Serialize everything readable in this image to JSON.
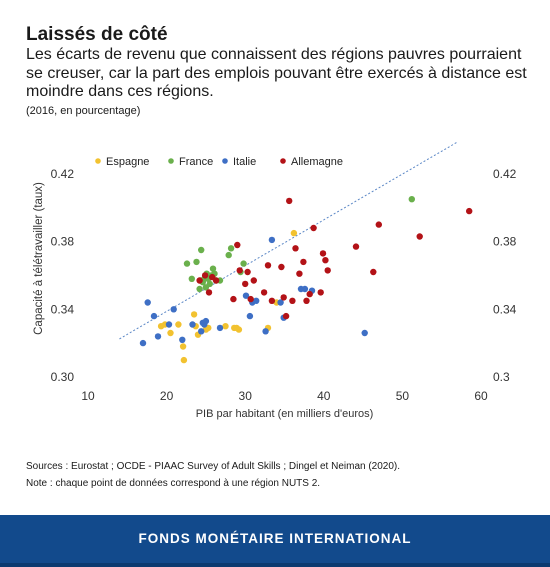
{
  "header": {
    "title": "Laissés de côté",
    "subtitle": "Les écarts de revenu que connaissent des régions pauvres pourraient se creuser, car la part des emplois pouvant être exercés à distance est moindre dans ces régions.",
    "unit": "(2016, en pourcentage)"
  },
  "notes": {
    "sources": "Sources : Eurostat ; OCDE - PIAAC Survey of Adult Skills ; Dingel et Neiman (2020).",
    "note": "Note : chaque point de données correspond à une région NUTS 2."
  },
  "footer": {
    "label": "FONDS MONÉTAIRE INTERNATIONAL"
  },
  "chart_data": {
    "type": "scatter",
    "xlabel": "PIB par habitant (en milliers d'euros)",
    "ylabel": "Capacité à télétravailler (taux)",
    "xlim": [
      10,
      60
    ],
    "ylim": [
      0.3,
      0.44
    ],
    "xticks": [
      10,
      20,
      30,
      40,
      50,
      60
    ],
    "yticks": [
      0.3,
      0.34,
      0.38,
      0.42
    ],
    "ytick_labels_left": [
      "0.30",
      "0.34",
      "0.38",
      "0.42"
    ],
    "ytick_labels_right": [
      "0.3",
      "0.34",
      "0.38",
      "0.42"
    ],
    "legend_position": "top-left",
    "grid": false,
    "trend_line": {
      "x": [
        14,
        57
      ],
      "y": [
        0.3225,
        0.4388
      ],
      "color": "#5b87c6"
    },
    "series": [
      {
        "name": "Espagne",
        "color": "#f2c230",
        "x": [
          19.3,
          19.8,
          20.5,
          21.5,
          22.1,
          22.2,
          23.5,
          23.7,
          24.0,
          25.0,
          25.3,
          27.5,
          28.6,
          28.9,
          29.2,
          32.9,
          34.0,
          36.2
        ],
        "y": [
          0.33,
          0.331,
          0.326,
          0.331,
          0.318,
          0.31,
          0.337,
          0.33,
          0.325,
          0.328,
          0.329,
          0.33,
          0.329,
          0.329,
          0.328,
          0.329,
          0.344,
          0.385
        ]
      },
      {
        "name": "France",
        "color": "#6ab04c",
        "x": [
          22.6,
          23.2,
          23.8,
          24.2,
          24.4,
          24.6,
          24.8,
          25.1,
          25.3,
          25.5,
          25.7,
          25.9,
          26.1,
          26.3,
          24.3,
          25.0,
          26.8,
          27.9,
          28.2,
          29.4,
          29.8,
          51.2
        ],
        "y": [
          0.367,
          0.358,
          0.368,
          0.352,
          0.375,
          0.356,
          0.358,
          0.361,
          0.358,
          0.355,
          0.36,
          0.364,
          0.361,
          0.357,
          0.357,
          0.353,
          0.357,
          0.372,
          0.376,
          0.362,
          0.367,
          0.405
        ]
      },
      {
        "name": "Italie",
        "color": "#3e6fc5",
        "x": [
          17.0,
          17.6,
          18.4,
          18.9,
          20.3,
          20.9,
          22.0,
          23.3,
          24.4,
          24.6,
          24.8,
          25.0,
          26.8,
          30.1,
          30.6,
          30.9,
          31.4,
          32.6,
          33.4,
          34.5,
          34.9,
          37.1,
          37.6,
          38.5,
          45.2
        ],
        "y": [
          0.32,
          0.344,
          0.336,
          0.324,
          0.331,
          0.34,
          0.322,
          0.331,
          0.327,
          0.332,
          0.331,
          0.333,
          0.329,
          0.348,
          0.336,
          0.344,
          0.345,
          0.327,
          0.381,
          0.344,
          0.335,
          0.352,
          0.352,
          0.351,
          0.326
        ]
      },
      {
        "name": "Allemagne",
        "color": "#b31217",
        "x": [
          24.2,
          24.9,
          25.4,
          25.8,
          26.3,
          28.5,
          29.0,
          29.3,
          30.0,
          30.3,
          30.7,
          31.1,
          32.4,
          32.9,
          33.4,
          34.6,
          34.9,
          35.2,
          35.6,
          36.0,
          36.4,
          36.9,
          37.4,
          37.8,
          38.2,
          38.7,
          39.6,
          39.9,
          40.2,
          40.5,
          44.1,
          46.3,
          47.0,
          52.2,
          58.5
        ],
        "y": [
          0.357,
          0.36,
          0.35,
          0.359,
          0.357,
          0.346,
          0.378,
          0.363,
          0.355,
          0.362,
          0.346,
          0.357,
          0.35,
          0.366,
          0.345,
          0.365,
          0.347,
          0.336,
          0.404,
          0.345,
          0.376,
          0.361,
          0.368,
          0.345,
          0.349,
          0.388,
          0.35,
          0.373,
          0.369,
          0.363,
          0.377,
          0.362,
          0.39,
          0.383,
          0.398
        ]
      }
    ]
  }
}
